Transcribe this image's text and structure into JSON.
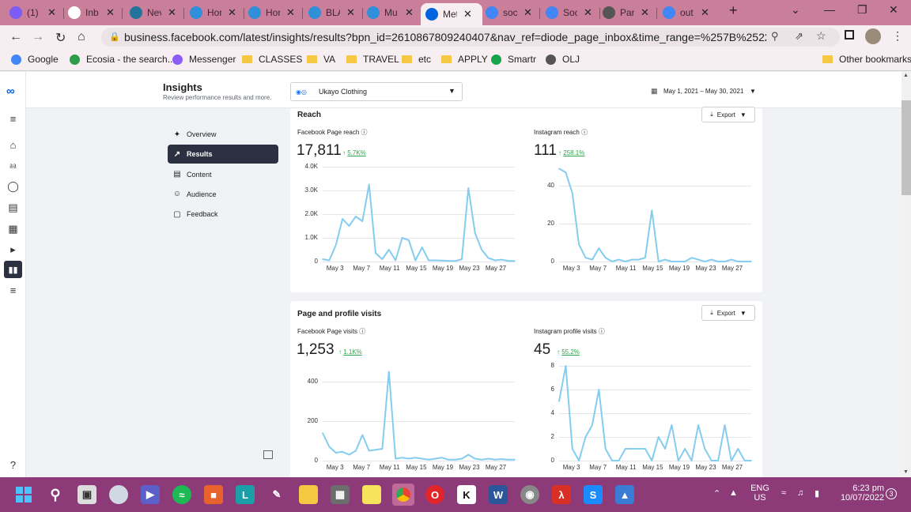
{
  "browser": {
    "tabs": [
      {
        "label": "(1) I",
        "icon": "messenger-icon",
        "color": "#7c5cf5"
      },
      {
        "label": "Inb",
        "icon": "gmail-icon",
        "color": "#ffffff"
      },
      {
        "label": "Nev",
        "icon": "wordpress-icon",
        "color": "#21759b"
      },
      {
        "label": "Hor",
        "icon": "canva-icon",
        "color": "#2f8fd8"
      },
      {
        "label": "Hor",
        "icon": "canva-icon",
        "color": "#2f8fd8"
      },
      {
        "label": "BLA",
        "icon": "canva-icon",
        "color": "#2f8fd8"
      },
      {
        "label": "Mu",
        "icon": "canva-icon",
        "color": "#2f8fd8"
      },
      {
        "label": "Met",
        "icon": "meta-icon",
        "color": "#0064e0"
      },
      {
        "label": "soc",
        "icon": "search-icon",
        "color": "#4285f4"
      },
      {
        "label": "Soc",
        "icon": "pin-icon",
        "color": "#4285f4"
      },
      {
        "label": "Par",
        "icon": "pencil-icon",
        "color": "#555555"
      },
      {
        "label": "out",
        "icon": "search-icon",
        "color": "#4285f4"
      }
    ],
    "new_tab": "+",
    "url": "business.facebook.com/latest/insights/results?bpn_id=2610867809240407&nav_ref=diode_page_inbox&time_range=%257B%2522end%2522%...",
    "bookmarks": [
      {
        "label": "Google",
        "icon": "google-icon"
      },
      {
        "label": "Ecosia - the search...",
        "icon": "ecosia-icon"
      },
      {
        "label": "Messenger",
        "icon": "messenger-icon"
      },
      {
        "label": "CLASSES",
        "icon": "folder-icon"
      },
      {
        "label": "VA",
        "icon": "folder-icon"
      },
      {
        "label": "TRAVEL",
        "icon": "folder-icon"
      },
      {
        "label": "etc",
        "icon": "folder-icon"
      },
      {
        "label": "APPLY",
        "icon": "folder-icon"
      },
      {
        "label": "Smartr",
        "icon": "smartr-icon"
      },
      {
        "label": "OLJ",
        "icon": "olj-icon"
      }
    ],
    "other_bookmarks": "Other bookmarks"
  },
  "header": {
    "title": "Insights",
    "subtitle": "Review performance results and more.",
    "account": "Ukayo Clothing",
    "date_range": "May 1, 2021 – May 30, 2021"
  },
  "nav": [
    {
      "label": "Overview",
      "icon": "overview-icon"
    },
    {
      "label": "Results",
      "icon": "results-icon"
    },
    {
      "label": "Content",
      "icon": "content-icon"
    },
    {
      "label": "Audience",
      "icon": "audience-icon"
    },
    {
      "label": "Feedback",
      "icon": "feedback-icon"
    }
  ],
  "reach_card": {
    "title": "Reach",
    "export": "Export",
    "fb": {
      "label": "Facebook Page reach",
      "value": "17,811",
      "delta": "5.7K%"
    },
    "ig": {
      "label": "Instagram reach",
      "value": "111",
      "delta": "258.1%"
    }
  },
  "visits_card": {
    "title": "Page and profile visits",
    "export": "Export",
    "fb": {
      "label": "Facebook Page visits",
      "value": "1,253",
      "delta": "1.1K%"
    },
    "ig": {
      "label": "Instagram profile visits",
      "value": "45",
      "delta": "55.2%"
    }
  },
  "x_ticks": [
    "May 3",
    "May 7",
    "May 11",
    "May 15",
    "May 19",
    "May 23",
    "May 27"
  ],
  "chart_data": [
    {
      "type": "line",
      "title": "Facebook Page reach",
      "x": [
        "May 1",
        "May 2",
        "May 3",
        "May 4",
        "May 5",
        "May 6",
        "May 7",
        "May 8",
        "May 9",
        "May 10",
        "May 11",
        "May 12",
        "May 13",
        "May 14",
        "May 15",
        "May 16",
        "May 17",
        "May 18",
        "May 19",
        "May 20",
        "May 21",
        "May 22",
        "May 23",
        "May 24",
        "May 25",
        "May 26",
        "May 27",
        "May 28",
        "May 29",
        "May 30"
      ],
      "y": [
        100,
        50,
        700,
        1800,
        1500,
        1900,
        1700,
        3250,
        350,
        100,
        500,
        50,
        1000,
        900,
        50,
        600,
        50,
        50,
        40,
        30,
        20,
        100,
        3100,
        1200,
        500,
        150,
        50,
        80,
        30,
        20
      ],
      "yticks": [
        "0",
        "1.0K",
        "2.0K",
        "3.0K",
        "4.0K"
      ],
      "ylim": [
        0,
        4000
      ],
      "color": "#84cdee"
    },
    {
      "type": "line",
      "title": "Instagram reach",
      "x": [
        "May 1",
        "May 2",
        "May 3",
        "May 4",
        "May 5",
        "May 6",
        "May 7",
        "May 8",
        "May 9",
        "May 10",
        "May 11",
        "May 12",
        "May 13",
        "May 14",
        "May 15",
        "May 16",
        "May 17",
        "May 18",
        "May 19",
        "May 20",
        "May 21",
        "May 22",
        "May 23",
        "May 24",
        "May 25",
        "May 26",
        "May 27",
        "May 28",
        "May 29",
        "May 30"
      ],
      "y": [
        49,
        47,
        36,
        9,
        2,
        1,
        7,
        2,
        0,
        1,
        0,
        1,
        1,
        2,
        27,
        0,
        1,
        0,
        0,
        0,
        2,
        1,
        0,
        1,
        0,
        0,
        1,
        0,
        0,
        0
      ],
      "yticks": [
        "0",
        "20",
        "40"
      ],
      "ylim": [
        0,
        50
      ],
      "color": "#84cdee"
    },
    {
      "type": "line",
      "title": "Facebook Page visits",
      "x": [
        "May 1",
        "May 2",
        "May 3",
        "May 4",
        "May 5",
        "May 6",
        "May 7",
        "May 8",
        "May 9",
        "May 10",
        "May 11",
        "May 12",
        "May 13",
        "May 14",
        "May 15",
        "May 16",
        "May 17",
        "May 18",
        "May 19",
        "May 20",
        "May 21",
        "May 22",
        "May 23",
        "May 24",
        "May 25",
        "May 26",
        "May 27",
        "May 28",
        "May 29",
        "May 30"
      ],
      "y": [
        140,
        70,
        40,
        45,
        30,
        50,
        130,
        50,
        55,
        60,
        450,
        10,
        15,
        10,
        15,
        10,
        5,
        10,
        15,
        5,
        5,
        10,
        30,
        10,
        5,
        10,
        5,
        8,
        5,
        5
      ],
      "yticks": [
        "0",
        "200",
        "400"
      ],
      "ylim": [
        0,
        480
      ],
      "color": "#84cdee"
    },
    {
      "type": "line",
      "title": "Instagram profile visits",
      "x": [
        "May 1",
        "May 2",
        "May 3",
        "May 4",
        "May 5",
        "May 6",
        "May 7",
        "May 8",
        "May 9",
        "May 10",
        "May 11",
        "May 12",
        "May 13",
        "May 14",
        "May 15",
        "May 16",
        "May 17",
        "May 18",
        "May 19",
        "May 20",
        "May 21",
        "May 22",
        "May 23",
        "May 24",
        "May 25",
        "May 26",
        "May 27",
        "May 28",
        "May 29",
        "May 30"
      ],
      "y": [
        5,
        8,
        1,
        0,
        2,
        3,
        6,
        1,
        0,
        0,
        1,
        1,
        1,
        1,
        0,
        2,
        1,
        3,
        0,
        1,
        0,
        3,
        1,
        0,
        0,
        3,
        0,
        1,
        0,
        0
      ],
      "yticks": [
        "0",
        "2",
        "4",
        "6",
        "8"
      ],
      "ylim": [
        0,
        8
      ],
      "color": "#84cdee"
    }
  ],
  "taskbar": {
    "time": "6:23 pm",
    "date": "10/07/2022",
    "lang": "ENG",
    "region": "US",
    "notif_count": "3"
  }
}
